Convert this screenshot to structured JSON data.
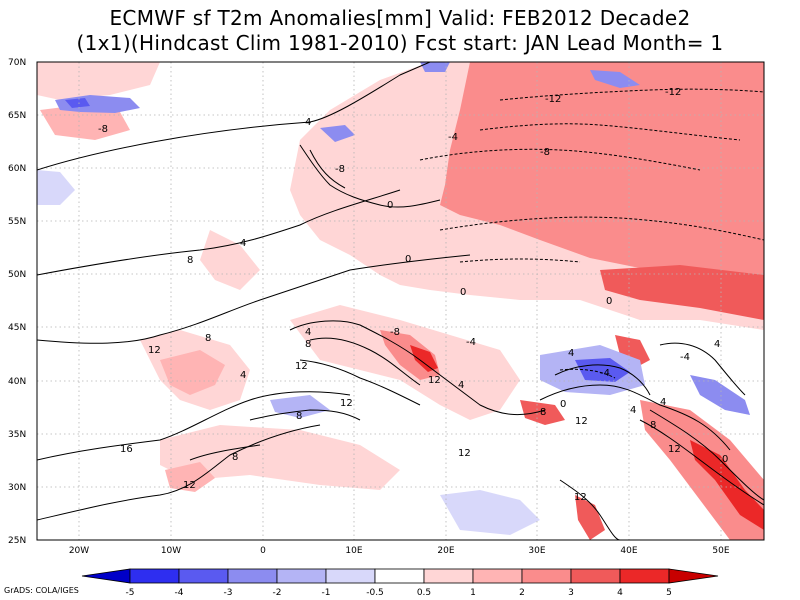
{
  "title": {
    "line1": "ECMWF sf T2m Anomalies[mm] Valid: FEB2012 Decade2",
    "line2": "(1x1)(Hindcast Clim 1981-2010) Fcst start: JAN  Lead Month= 1"
  },
  "map": {
    "lat_ticks": [
      "25N",
      "30N",
      "35N",
      "40N",
      "45N",
      "50N",
      "55N",
      "60N",
      "65N",
      "70N"
    ],
    "lon_ticks": [
      "20W",
      "10W",
      "0",
      "10E",
      "20E",
      "30E",
      "40E",
      "50E"
    ],
    "contour_labels": [
      "-8",
      "-8",
      "-12",
      "-12",
      "-8",
      "-4",
      "-4",
      "0",
      "4",
      "4",
      "8",
      "0",
      "0",
      "0",
      "4",
      "8",
      "12",
      "12",
      "8",
      "-8",
      "8",
      "4",
      "12",
      "16",
      "8",
      "12",
      "12",
      "4",
      "-4",
      "4",
      "4",
      "8",
      "12",
      "12",
      "12",
      "12",
      "0",
      "8",
      "-4",
      "4",
      "4",
      "-4",
      "0"
    ],
    "colors": {
      "neg5": "#0000c8",
      "neg4": "#2e2ef0",
      "neg3": "#5a5af0",
      "neg2": "#8c8cf0",
      "neg1": "#b4b4f5",
      "neg05": "#d8d8fa",
      "zero": "#ffffff",
      "pos05": "#ffd6d6",
      "pos1": "#ffb4b4",
      "pos2": "#fa8c8c",
      "pos3": "#f05a5a",
      "pos4": "#eb2828",
      "pos5": "#c80000"
    }
  },
  "colorbar": {
    "labels": [
      "-5",
      "-4",
      "-3",
      "-2",
      "-1",
      "-0.5",
      "0.5",
      "1",
      "2",
      "3",
      "4",
      "5"
    ],
    "colors": [
      "#0000c8",
      "#2e2ef0",
      "#5a5af0",
      "#8c8cf0",
      "#b4b4f5",
      "#d8d8fa",
      "#ffffff",
      "#ffd6d6",
      "#ffb4b4",
      "#fa8c8c",
      "#f05a5a",
      "#eb2828",
      "#c80000"
    ]
  },
  "credit": "GrADS: COLA/IGES"
}
